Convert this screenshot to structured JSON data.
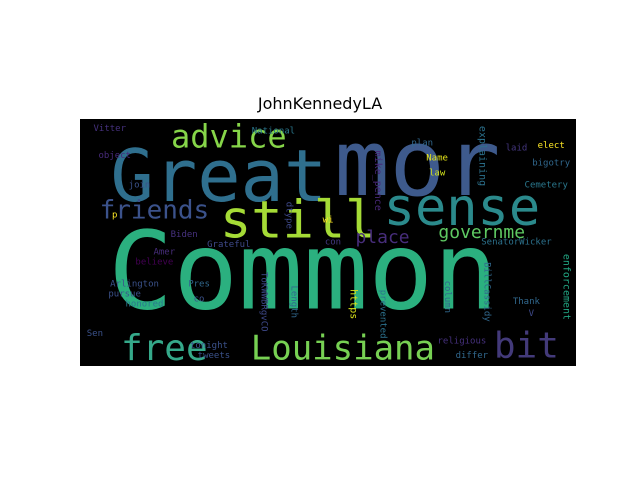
{
  "chart_data": {
    "type": "wordcloud",
    "title": "JohnKennedyLA",
    "background": "#000000",
    "words": [
      {
        "text": "Common",
        "x": 0.45,
        "y": 0.62,
        "size": 108,
        "color": "#2bb07f",
        "rot": 0
      },
      {
        "text": "mor",
        "x": 0.68,
        "y": 0.18,
        "size": 92,
        "color": "#3e5a8c",
        "rot": 0
      },
      {
        "text": "Great",
        "x": 0.28,
        "y": 0.23,
        "size": 72,
        "color": "#2f6f8e",
        "rot": 0
      },
      {
        "text": "sense",
        "x": 0.77,
        "y": 0.36,
        "size": 52,
        "color": "#2b8a8c",
        "rot": 0
      },
      {
        "text": "still",
        "x": 0.44,
        "y": 0.41,
        "size": 52,
        "color": "#a5db36",
        "rot": 0
      },
      {
        "text": "free",
        "x": 0.17,
        "y": 0.93,
        "size": 36,
        "color": "#35a98a",
        "rot": 0
      },
      {
        "text": "Louisiana",
        "x": 0.53,
        "y": 0.93,
        "size": 34,
        "color": "#77d153",
        "rot": 0
      },
      {
        "text": "bit",
        "x": 0.9,
        "y": 0.92,
        "size": 36,
        "color": "#433a7a",
        "rot": 0
      },
      {
        "text": "advice",
        "x": 0.3,
        "y": 0.07,
        "size": 32,
        "color": "#86d549",
        "rot": 0
      },
      {
        "text": "friends",
        "x": 0.15,
        "y": 0.37,
        "size": 26,
        "color": "#3b528b",
        "rot": 0
      },
      {
        "text": "place",
        "x": 0.61,
        "y": 0.48,
        "size": 18,
        "color": "#472d7b",
        "rot": 0
      },
      {
        "text": "governme",
        "x": 0.81,
        "y": 0.46,
        "size": 18,
        "color": "#5ec962",
        "rot": 0
      },
      {
        "text": "mike_pence",
        "x": 0.6,
        "y": 0.25,
        "size": 10,
        "color": "#482878",
        "rot": 90
      },
      {
        "text": "https",
        "x": 0.55,
        "y": 0.75,
        "size": 10,
        "color": "#d8e219",
        "rot": 90
      },
      {
        "text": "explaining",
        "x": 0.81,
        "y": 0.15,
        "size": 10,
        "color": "#2c728e",
        "rot": 90
      },
      {
        "text": "enforcement",
        "x": 0.98,
        "y": 0.68,
        "size": 10,
        "color": "#22a884",
        "rot": 90
      },
      {
        "text": "Vitter",
        "x": 0.06,
        "y": 0.04,
        "size": 9,
        "color": "#46317e",
        "rot": 0
      },
      {
        "text": "object",
        "x": 0.07,
        "y": 0.15,
        "size": 9,
        "color": "#472a7a",
        "rot": 0
      },
      {
        "text": "National",
        "x": 0.39,
        "y": 0.05,
        "size": 9,
        "color": "#2a788e",
        "rot": 0
      },
      {
        "text": "plan",
        "x": 0.69,
        "y": 0.1,
        "size": 9,
        "color": "#31688e",
        "rot": 0
      },
      {
        "text": "laid",
        "x": 0.88,
        "y": 0.12,
        "size": 9,
        "color": "#453781",
        "rot": 0
      },
      {
        "text": "elect",
        "x": 0.95,
        "y": 0.11,
        "size": 9,
        "color": "#fde725",
        "rot": 0
      },
      {
        "text": "Name",
        "x": 0.72,
        "y": 0.16,
        "size": 9,
        "color": "#e5e419",
        "rot": 0
      },
      {
        "text": "bigotry",
        "x": 0.95,
        "y": 0.18,
        "size": 9,
        "color": "#31688e",
        "rot": 0
      },
      {
        "text": "law",
        "x": 0.72,
        "y": 0.22,
        "size": 9,
        "color": "#d0e11c",
        "rot": 0
      },
      {
        "text": "Cemetery",
        "x": 0.94,
        "y": 0.27,
        "size": 9,
        "color": "#2a788e",
        "rot": 0
      },
      {
        "text": "join",
        "x": 0.12,
        "y": 0.27,
        "size": 9,
        "color": "#3b528b",
        "rot": 0
      },
      {
        "text": "dtype",
        "x": 0.42,
        "y": 0.39,
        "size": 9,
        "color": "#3e4989",
        "rot": 90
      },
      {
        "text": "p",
        "x": 0.07,
        "y": 0.39,
        "size": 9,
        "color": "#fde725",
        "rot": 0
      },
      {
        "text": "wi",
        "x": 0.5,
        "y": 0.41,
        "size": 9,
        "color": "#fde725",
        "rot": 0
      },
      {
        "text": "Biden",
        "x": 0.21,
        "y": 0.47,
        "size": 9,
        "color": "#46317e",
        "rot": 0
      },
      {
        "text": "con",
        "x": 0.51,
        "y": 0.5,
        "size": 9,
        "color": "#443983",
        "rot": 0
      },
      {
        "text": "Grateful",
        "x": 0.3,
        "y": 0.51,
        "size": 9,
        "color": "#3e4989",
        "rot": 0
      },
      {
        "text": "SenatorWicker",
        "x": 0.88,
        "y": 0.5,
        "size": 9,
        "color": "#2c728e",
        "rot": 0
      },
      {
        "text": "Amer",
        "x": 0.17,
        "y": 0.54,
        "size": 9,
        "color": "#472d7b",
        "rot": 0
      },
      {
        "text": "believe",
        "x": 0.15,
        "y": 0.58,
        "size": 9,
        "color": "#440154",
        "rot": 0
      },
      {
        "text": "Arlington",
        "x": 0.11,
        "y": 0.67,
        "size": 9,
        "color": "#3b528b",
        "rot": 0
      },
      {
        "text": "Pres",
        "x": 0.24,
        "y": 0.67,
        "size": 9,
        "color": "#31688e",
        "rot": 0
      },
      {
        "text": "pursue",
        "x": 0.09,
        "y": 0.71,
        "size": 9,
        "color": "#3b528b",
        "rot": 0
      },
      {
        "text": "co",
        "x": 0.24,
        "y": 0.73,
        "size": 9,
        "color": "#3b528b",
        "rot": 0
      },
      {
        "text": "honored",
        "x": 0.13,
        "y": 0.75,
        "size": 9,
        "color": "#2a788e",
        "rot": 0
      },
      {
        "text": "ToKWWBRgvCO",
        "x": 0.37,
        "y": 0.74,
        "size": 9,
        "color": "#3e4989",
        "rot": 90
      },
      {
        "text": "Length",
        "x": 0.43,
        "y": 0.74,
        "size": 9,
        "color": "#31688e",
        "rot": 90
      },
      {
        "text": "prevented",
        "x": 0.61,
        "y": 0.79,
        "size": 9,
        "color": "#2c728e",
        "rot": 90
      },
      {
        "text": "column",
        "x": 0.74,
        "y": 0.72,
        "size": 9,
        "color": "#31688e",
        "rot": 90
      },
      {
        "text": "BillCassidy",
        "x": 0.82,
        "y": 0.7,
        "size": 9,
        "color": "#31688e",
        "rot": 90
      },
      {
        "text": "Thank",
        "x": 0.9,
        "y": 0.74,
        "size": 9,
        "color": "#31688e",
        "rot": 0
      },
      {
        "text": "V",
        "x": 0.91,
        "y": 0.79,
        "size": 9,
        "color": "#3e4989",
        "rot": 0
      },
      {
        "text": "Sen",
        "x": 0.03,
        "y": 0.87,
        "size": 9,
        "color": "#3b528b",
        "rot": 0
      },
      {
        "text": "religious",
        "x": 0.77,
        "y": 0.9,
        "size": 9,
        "color": "#46317e",
        "rot": 0
      },
      {
        "text": "tonight",
        "x": 0.26,
        "y": 0.92,
        "size": 9,
        "color": "#3b528b",
        "rot": 0
      },
      {
        "text": "tweets",
        "x": 0.27,
        "y": 0.96,
        "size": 9,
        "color": "#3b528b",
        "rot": 0
      },
      {
        "text": "differ",
        "x": 0.79,
        "y": 0.96,
        "size": 9,
        "color": "#31688e",
        "rot": 0
      }
    ]
  }
}
